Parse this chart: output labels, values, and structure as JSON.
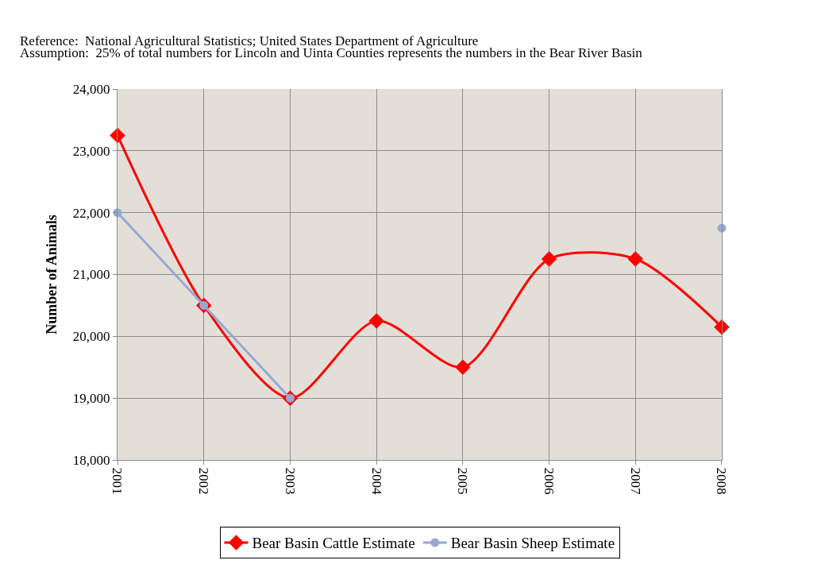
{
  "chart_data": {
    "type": "line",
    "annotations": [
      "Reference:  National Agricultural Statistics; United States Department of Agriculture",
      "Assumption:  25% of total numbers for Lincoln and Uinta Counties represents the numbers in the Bear River Basin"
    ],
    "ylabel": "Number of Animals",
    "categories": [
      "2001",
      "2002",
      "2003",
      "2004",
      "2005",
      "2006",
      "2007",
      "2008"
    ],
    "series": [
      {
        "name": "Bear Basin Cattle Estimate",
        "color": "#ff0000",
        "marker": "diamond",
        "values": [
          23250,
          20500,
          19000,
          20250,
          19500,
          21250,
          21250,
          20150
        ]
      },
      {
        "name": "Bear Basin Sheep Estimate",
        "color": "#95a9d2",
        "marker": "circle",
        "values": [
          22000,
          20500,
          19000,
          null,
          null,
          null,
          null,
          21750
        ]
      }
    ],
    "ylim": [
      18000,
      24000
    ],
    "yticks": [
      {
        "value": 18000,
        "label": "18,000"
      },
      {
        "value": 19000,
        "label": "19,000"
      },
      {
        "value": 20000,
        "label": "20,000"
      },
      {
        "value": 21000,
        "label": "21,000"
      },
      {
        "value": 22000,
        "label": "22,000"
      },
      {
        "value": 23000,
        "label": "23,000"
      },
      {
        "value": 24000,
        "label": "24,000"
      }
    ],
    "grid": true,
    "legend": "bottom",
    "line_style": "solid"
  }
}
